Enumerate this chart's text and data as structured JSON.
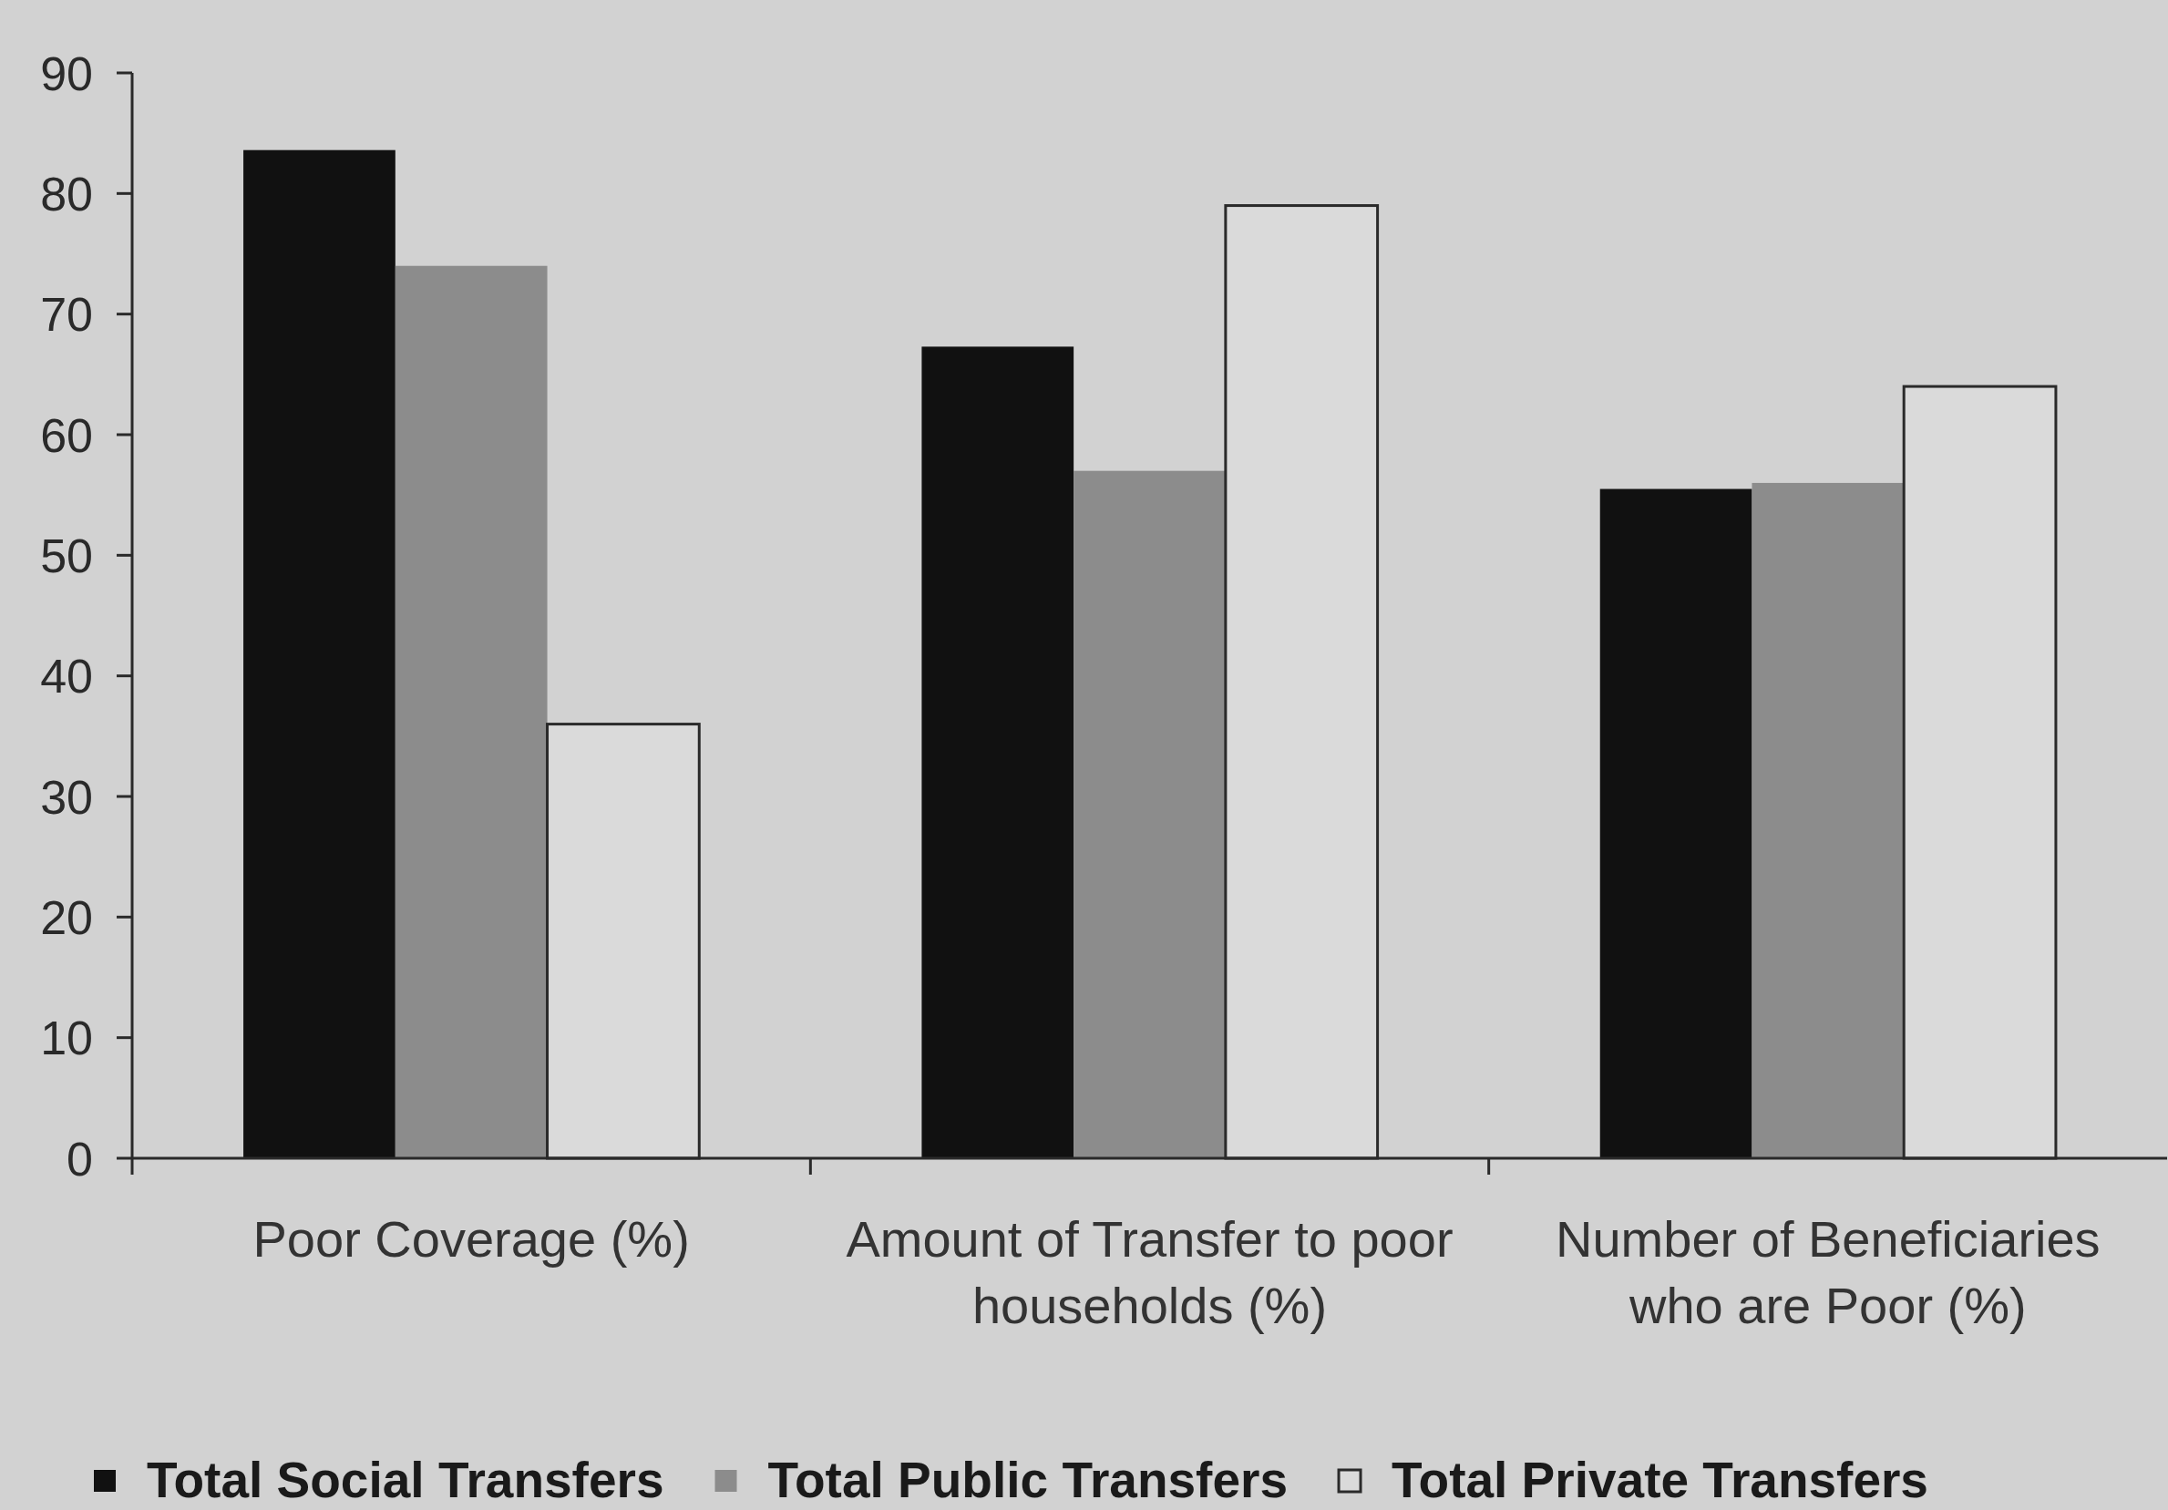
{
  "chart_data": {
    "type": "bar",
    "categories": [
      "Poor Coverage (%)",
      "Amount of Transfer to poor households (%)",
      "Number of Beneficiaries who are Poor (%)"
    ],
    "series": [
      {
        "name": "Total Social Transfers",
        "color": "#111111",
        "values": [
          83.6,
          67.3,
          55.5
        ]
      },
      {
        "name": "Total Public Transfers",
        "color": "#8c8c8c",
        "values": [
          74,
          57,
          56
        ]
      },
      {
        "name": "Total Private Transfers",
        "color": "#dadada",
        "values": [
          36,
          79,
          64
        ]
      }
    ],
    "ylim": [
      0,
      90
    ],
    "yticks": [
      0,
      10,
      20,
      30,
      40,
      50,
      60,
      70,
      80,
      90
    ],
    "legend": "bottom"
  }
}
